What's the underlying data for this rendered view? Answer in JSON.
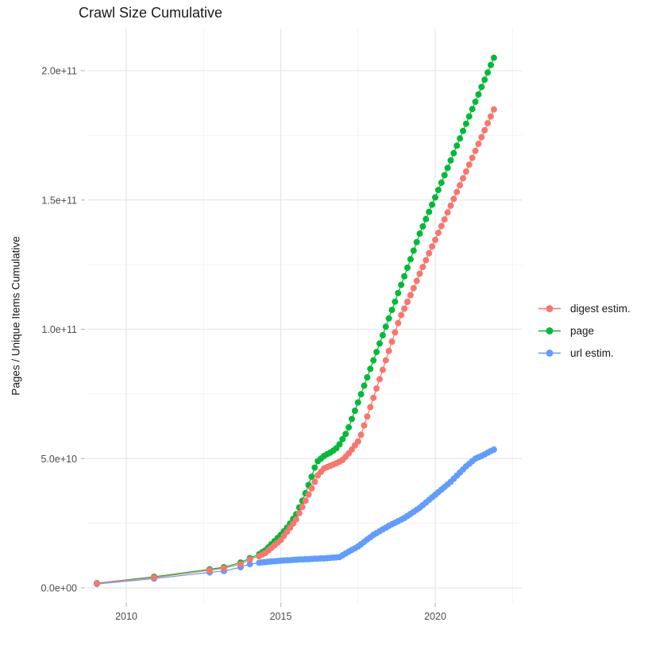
{
  "chart_data": {
    "type": "line",
    "title": "Crawl Size Cumulative",
    "xlabel": "",
    "ylabel": "Pages / Unique Items Cumulative",
    "value_unit": "billions of items (1e9)",
    "grid": true,
    "legend_position": "right",
    "x_axis": {
      "range": [
        2008.7,
        2022.8
      ],
      "ticks": [
        {
          "year": 2010,
          "label": "2010"
        },
        {
          "year": 2015,
          "label": "2015"
        },
        {
          "year": 2020,
          "label": "2020"
        }
      ],
      "minor_ticks": [
        2012.5,
        2017.5,
        2022.5
      ]
    },
    "y_axis": {
      "range_e9": [
        -7,
        216
      ],
      "ticks": [
        {
          "value_e9": 0,
          "label": "0.0e+00"
        },
        {
          "value_e9": 50,
          "label": "5.0e+10"
        },
        {
          "value_e9": 100,
          "label": "1.0e+11"
        },
        {
          "value_e9": 150,
          "label": "1.5e+11"
        },
        {
          "value_e9": 200,
          "label": "2.0e+11"
        }
      ],
      "minor_ticks_e9": [
        25,
        75,
        125,
        175
      ]
    },
    "series": [
      {
        "name": "digest estim.",
        "color": "#F8766D",
        "points": [
          [
            2009.05,
            1.8
          ],
          [
            2010.9,
            4.0
          ],
          [
            2012.7,
            6.8
          ],
          [
            2013.16,
            7.6
          ],
          [
            2013.7,
            9.2
          ],
          [
            2014.0,
            11.0
          ],
          [
            2014.3,
            12.3
          ],
          [
            2014.4,
            12.9
          ],
          [
            2014.5,
            13.5
          ],
          [
            2014.6,
            14.5
          ],
          [
            2014.7,
            15.5
          ],
          [
            2014.8,
            16.5
          ],
          [
            2014.9,
            17.5
          ],
          [
            2015.0,
            18.5
          ],
          [
            2015.1,
            20.1
          ],
          [
            2015.2,
            21.7
          ],
          [
            2015.3,
            23.3
          ],
          [
            2015.4,
            24.9
          ],
          [
            2015.5,
            26.5
          ],
          [
            2015.6,
            28.9
          ],
          [
            2015.7,
            31.3
          ],
          [
            2015.8,
            33.7
          ],
          [
            2015.9,
            36.1
          ],
          [
            2016.0,
            38.5
          ],
          [
            2016.1,
            41.0
          ],
          [
            2016.2,
            43.5
          ],
          [
            2016.3,
            44.9
          ],
          [
            2016.4,
            46.2
          ],
          [
            2016.5,
            46.7
          ],
          [
            2016.6,
            47.2
          ],
          [
            2016.7,
            47.7
          ],
          [
            2016.8,
            48.2
          ],
          [
            2016.9,
            48.8
          ],
          [
            2017.0,
            49.5
          ],
          [
            2017.1,
            50.7
          ],
          [
            2017.2,
            52.0
          ],
          [
            2017.3,
            53.5
          ],
          [
            2017.4,
            55.1
          ],
          [
            2017.5,
            56.6
          ],
          [
            2017.6,
            59.2
          ],
          [
            2017.7,
            62.8
          ],
          [
            2017.8,
            66.3
          ],
          [
            2017.9,
            69.9
          ],
          [
            2018.0,
            73.5
          ],
          [
            2018.1,
            77.1
          ],
          [
            2018.2,
            80.7
          ],
          [
            2018.3,
            84.3
          ],
          [
            2018.4,
            88.0
          ],
          [
            2018.5,
            91.6
          ],
          [
            2018.6,
            95.2
          ],
          [
            2018.7,
            98.8
          ],
          [
            2018.8,
            102.4
          ],
          [
            2018.9,
            105.5
          ],
          [
            2019.0,
            108.0
          ],
          [
            2019.1,
            110.6
          ],
          [
            2019.2,
            113.2
          ],
          [
            2019.3,
            115.9
          ],
          [
            2019.4,
            118.7
          ],
          [
            2019.5,
            121.5
          ],
          [
            2019.6,
            124.1
          ],
          [
            2019.7,
            126.7
          ],
          [
            2019.8,
            129.4
          ],
          [
            2019.9,
            132.0
          ],
          [
            2020.0,
            134.6
          ],
          [
            2020.1,
            137.3
          ],
          [
            2020.2,
            139.9
          ],
          [
            2020.3,
            142.5
          ],
          [
            2020.4,
            145.2
          ],
          [
            2020.5,
            147.8
          ],
          [
            2020.6,
            150.4
          ],
          [
            2020.7,
            153.1
          ],
          [
            2020.8,
            155.7
          ],
          [
            2020.9,
            158.4
          ],
          [
            2021.0,
            161.0
          ],
          [
            2021.1,
            163.7
          ],
          [
            2021.2,
            166.3
          ],
          [
            2021.3,
            169.0
          ],
          [
            2021.4,
            171.7
          ],
          [
            2021.5,
            174.3
          ],
          [
            2021.6,
            177.0
          ],
          [
            2021.7,
            179.7
          ],
          [
            2021.8,
            182.3
          ],
          [
            2021.9,
            185.0
          ]
        ]
      },
      {
        "name": "page",
        "color": "#00BA38",
        "points": [
          [
            2009.05,
            1.8
          ],
          [
            2010.9,
            4.3
          ],
          [
            2012.7,
            7.2
          ],
          [
            2013.16,
            8.0
          ],
          [
            2013.7,
            9.8
          ],
          [
            2014.0,
            11.5
          ],
          [
            2014.3,
            13.0
          ],
          [
            2014.4,
            13.8
          ],
          [
            2014.5,
            14.5
          ],
          [
            2014.6,
            15.7
          ],
          [
            2014.7,
            16.9
          ],
          [
            2014.8,
            18.1
          ],
          [
            2014.9,
            19.3
          ],
          [
            2015.0,
            20.5
          ],
          [
            2015.1,
            21.9
          ],
          [
            2015.2,
            23.3
          ],
          [
            2015.3,
            24.9
          ],
          [
            2015.4,
            26.7
          ],
          [
            2015.5,
            28.5
          ],
          [
            2015.6,
            31.1
          ],
          [
            2015.7,
            33.7
          ],
          [
            2015.8,
            36.6
          ],
          [
            2015.9,
            39.8
          ],
          [
            2016.0,
            43.0
          ],
          [
            2016.1,
            46.5
          ],
          [
            2016.2,
            49.0
          ],
          [
            2016.3,
            50.0
          ],
          [
            2016.4,
            51.0
          ],
          [
            2016.5,
            51.7
          ],
          [
            2016.6,
            52.3
          ],
          [
            2016.7,
            53.1
          ],
          [
            2016.8,
            54.0
          ],
          [
            2016.9,
            55.5
          ],
          [
            2017.0,
            57.5
          ],
          [
            2017.1,
            59.5
          ],
          [
            2017.2,
            62.1
          ],
          [
            2017.3,
            65.3
          ],
          [
            2017.4,
            68.5
          ],
          [
            2017.5,
            71.7
          ],
          [
            2017.6,
            74.9
          ],
          [
            2017.7,
            78.2
          ],
          [
            2017.8,
            81.4
          ],
          [
            2017.9,
            84.7
          ],
          [
            2018.0,
            88.0
          ],
          [
            2018.1,
            91.2
          ],
          [
            2018.2,
            94.5
          ],
          [
            2018.3,
            97.7
          ],
          [
            2018.4,
            101.0
          ],
          [
            2018.5,
            104.2
          ],
          [
            2018.6,
            107.5
          ],
          [
            2018.7,
            110.7
          ],
          [
            2018.8,
            114.0
          ],
          [
            2018.9,
            117.2
          ],
          [
            2019.0,
            120.5
          ],
          [
            2019.1,
            123.8
          ],
          [
            2019.2,
            127.1
          ],
          [
            2019.3,
            130.4
          ],
          [
            2019.4,
            133.7
          ],
          [
            2019.5,
            137.0
          ],
          [
            2019.6,
            139.8
          ],
          [
            2019.7,
            142.6
          ],
          [
            2019.8,
            145.4
          ],
          [
            2019.9,
            148.2
          ],
          [
            2020.0,
            151.0
          ],
          [
            2020.1,
            153.9
          ],
          [
            2020.2,
            156.7
          ],
          [
            2020.3,
            159.6
          ],
          [
            2020.4,
            162.4
          ],
          [
            2020.5,
            165.3
          ],
          [
            2020.6,
            168.1
          ],
          [
            2020.7,
            171.0
          ],
          [
            2020.8,
            173.8
          ],
          [
            2020.9,
            176.7
          ],
          [
            2021.0,
            179.5
          ],
          [
            2021.1,
            182.3
          ],
          [
            2021.2,
            185.2
          ],
          [
            2021.3,
            188.0
          ],
          [
            2021.4,
            190.8
          ],
          [
            2021.5,
            193.7
          ],
          [
            2021.6,
            196.5
          ],
          [
            2021.7,
            199.3
          ],
          [
            2021.8,
            202.2
          ],
          [
            2021.9,
            205.0
          ]
        ]
      },
      {
        "name": "url estim.",
        "color": "#619CFF",
        "points": [
          [
            2009.05,
            1.5
          ],
          [
            2010.9,
            3.6
          ],
          [
            2012.7,
            6.0
          ],
          [
            2013.16,
            6.5
          ],
          [
            2013.7,
            8.0
          ],
          [
            2014.0,
            9.2
          ],
          [
            2014.3,
            9.7
          ],
          [
            2014.4,
            9.9
          ],
          [
            2014.5,
            10.0
          ],
          [
            2014.6,
            10.1
          ],
          [
            2014.7,
            10.2
          ],
          [
            2014.8,
            10.3
          ],
          [
            2014.9,
            10.4
          ],
          [
            2015.0,
            10.5
          ],
          [
            2015.1,
            10.6
          ],
          [
            2015.2,
            10.7
          ],
          [
            2015.3,
            10.7
          ],
          [
            2015.4,
            10.8
          ],
          [
            2015.5,
            10.9
          ],
          [
            2015.6,
            11.0
          ],
          [
            2015.7,
            11.0
          ],
          [
            2015.8,
            11.1
          ],
          [
            2015.9,
            11.1
          ],
          [
            2016.0,
            11.2
          ],
          [
            2016.1,
            11.3
          ],
          [
            2016.2,
            11.3
          ],
          [
            2016.3,
            11.4
          ],
          [
            2016.4,
            11.4
          ],
          [
            2016.5,
            11.5
          ],
          [
            2016.6,
            11.6
          ],
          [
            2016.7,
            11.7
          ],
          [
            2016.8,
            11.8
          ],
          [
            2016.9,
            11.9
          ],
          [
            2017.0,
            12.6
          ],
          [
            2017.1,
            13.3
          ],
          [
            2017.2,
            14.0
          ],
          [
            2017.3,
            14.7
          ],
          [
            2017.4,
            15.3
          ],
          [
            2017.5,
            16.0
          ],
          [
            2017.6,
            16.9
          ],
          [
            2017.7,
            17.8
          ],
          [
            2017.8,
            18.7
          ],
          [
            2017.9,
            19.6
          ],
          [
            2018.0,
            20.5
          ],
          [
            2018.1,
            21.2
          ],
          [
            2018.2,
            21.9
          ],
          [
            2018.3,
            22.6
          ],
          [
            2018.4,
            23.3
          ],
          [
            2018.5,
            24.0
          ],
          [
            2018.6,
            24.6
          ],
          [
            2018.7,
            25.2
          ],
          [
            2018.8,
            25.8
          ],
          [
            2018.9,
            26.4
          ],
          [
            2019.0,
            27.0
          ],
          [
            2019.1,
            27.8
          ],
          [
            2019.2,
            28.6
          ],
          [
            2019.3,
            29.4
          ],
          [
            2019.4,
            30.2
          ],
          [
            2019.5,
            31.0
          ],
          [
            2019.6,
            32.0
          ],
          [
            2019.7,
            33.0
          ],
          [
            2019.8,
            34.0
          ],
          [
            2019.9,
            35.0
          ],
          [
            2020.0,
            36.0
          ],
          [
            2020.1,
            37.0
          ],
          [
            2020.2,
            38.0
          ],
          [
            2020.3,
            39.0
          ],
          [
            2020.4,
            40.0
          ],
          [
            2020.5,
            41.0
          ],
          [
            2020.6,
            42.2
          ],
          [
            2020.7,
            43.4
          ],
          [
            2020.8,
            44.6
          ],
          [
            2020.9,
            45.8
          ],
          [
            2021.0,
            47.0
          ],
          [
            2021.1,
            48.0
          ],
          [
            2021.2,
            49.0
          ],
          [
            2021.3,
            50.0
          ],
          [
            2021.4,
            50.5
          ],
          [
            2021.5,
            51.0
          ],
          [
            2021.6,
            51.6
          ],
          [
            2021.7,
            52.3
          ],
          [
            2021.8,
            52.9
          ],
          [
            2021.9,
            53.5
          ]
        ]
      }
    ]
  },
  "colors": {
    "background": "#ffffff",
    "grid_major": "#e6e6e6",
    "grid_minor": "#f2f2f2",
    "tick_mark": "#bbbbbb",
    "tick_label": "#4d4d4d",
    "text": "#1a1a1a"
  }
}
